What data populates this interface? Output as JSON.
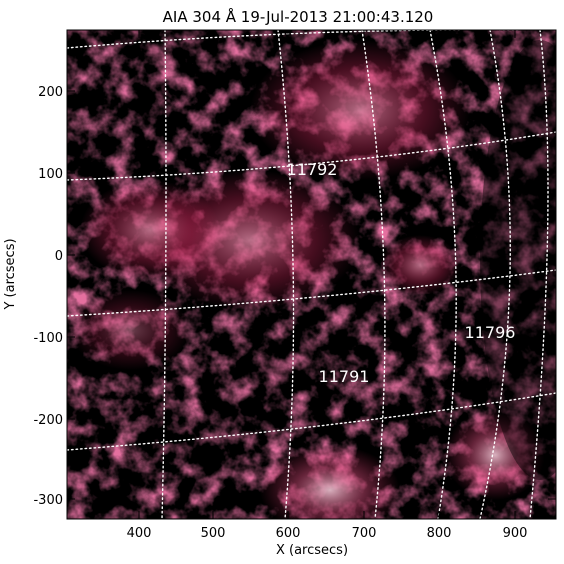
{
  "title": "AIA 304 Å 19-Jul-2013 21:00:43.120",
  "x_axis": {
    "label": "X (arcsecs)",
    "ticks": [
      "400",
      "500",
      "600",
      "700",
      "800",
      "900"
    ]
  },
  "y_axis": {
    "label": "Y (arcsecs)",
    "ticks": [
      "200",
      "100",
      "0",
      "-100",
      "-200",
      "-300"
    ]
  },
  "regions": [
    {
      "label": "11792"
    },
    {
      "label": "11796"
    },
    {
      "label": "11791"
    }
  ],
  "colors": {
    "background": "#000000",
    "emission": "#c8285a",
    "grid": "#ffffff"
  },
  "heliographic_grid": "dotted white"
}
